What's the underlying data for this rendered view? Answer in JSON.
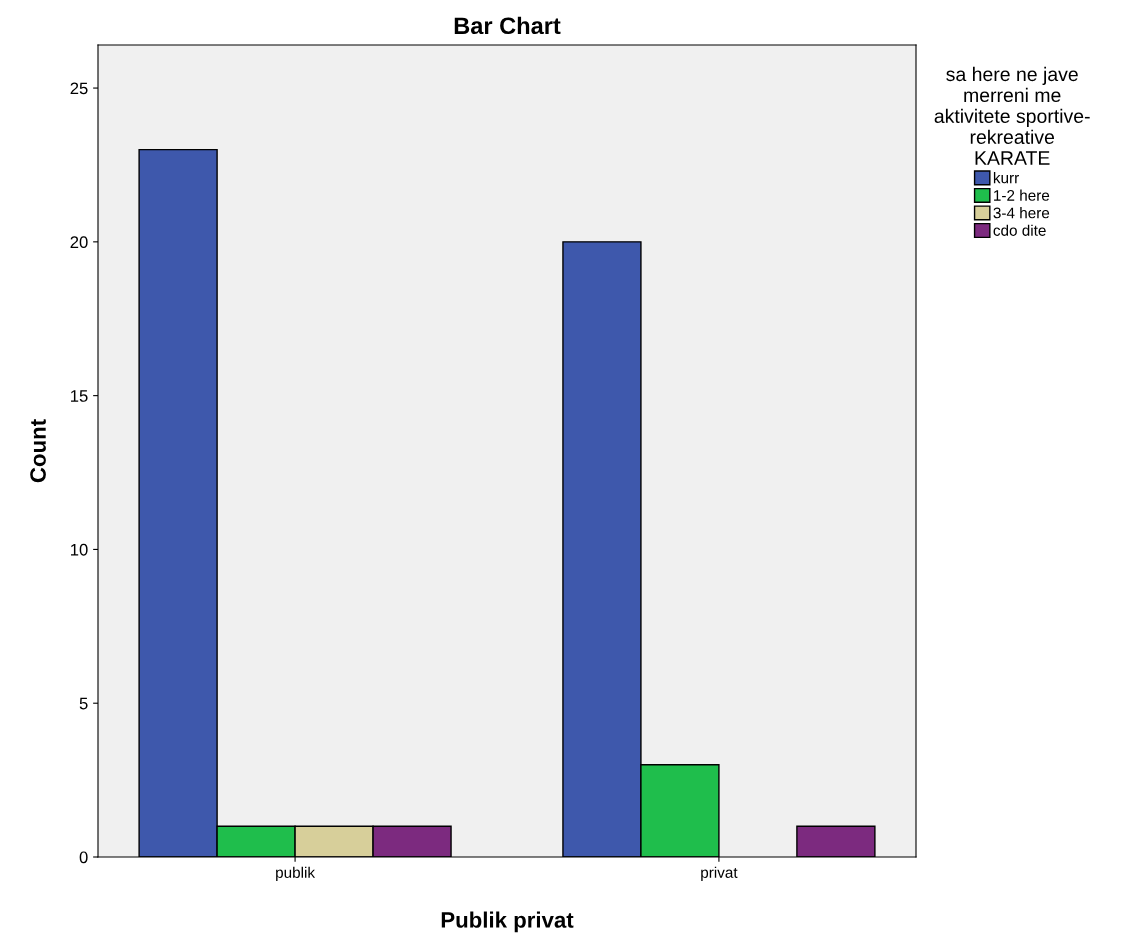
{
  "chart_data": {
    "type": "bar",
    "title": "Bar Chart",
    "xlabel": "Publik privat",
    "ylabel": "Count",
    "legend_title": "sa here ne jave\nmerreni me\naktivitete sportive-\nrekreative\nKARATE",
    "categories": [
      "publik",
      "privat"
    ],
    "series": [
      {
        "name": "kurr",
        "color": "#3e58ac",
        "values": [
          23,
          20
        ]
      },
      {
        "name": "1-2 here",
        "color": "#1fbe4c",
        "values": [
          1,
          3
        ]
      },
      {
        "name": "3-4 here",
        "color": "#d7cf9a",
        "values": [
          1,
          0
        ]
      },
      {
        "name": "cdo dite",
        "color": "#7c2a7f",
        "values": [
          1,
          1
        ]
      }
    ],
    "ylim": [
      0,
      26.4
    ],
    "yticks": [
      0,
      5,
      10,
      15,
      20,
      25
    ],
    "grid": false,
    "legend": "top right"
  }
}
